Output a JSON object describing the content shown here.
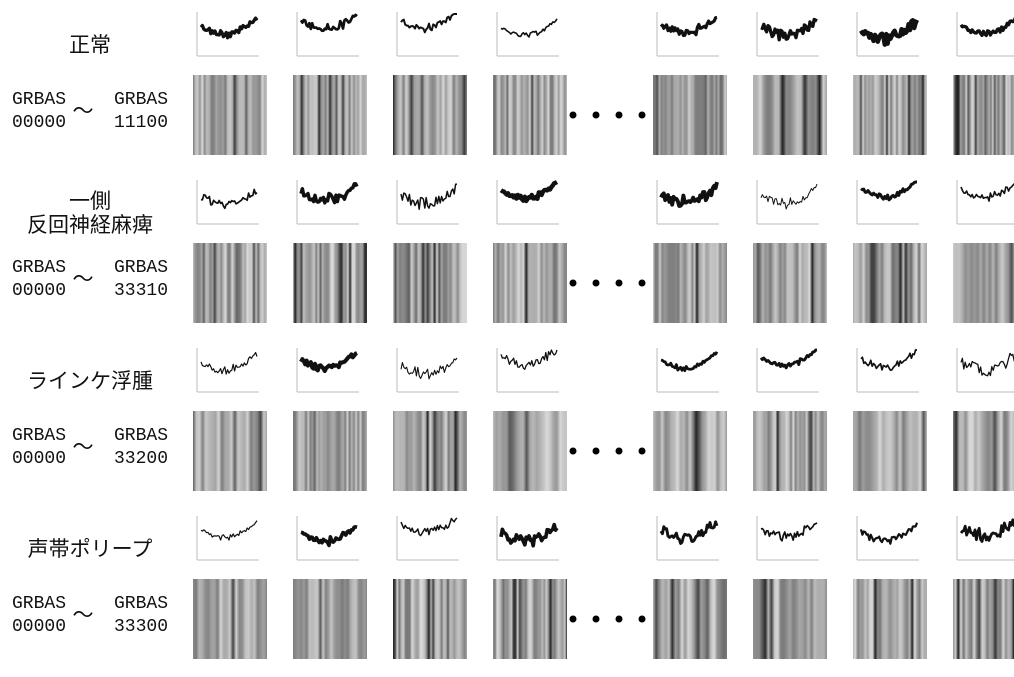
{
  "groups": [
    {
      "label": [
        "正常"
      ],
      "from_label": "GRBAS",
      "from_code": "00000",
      "separator": "～",
      "to_label": "GRBAS",
      "to_code": "11100"
    },
    {
      "label": [
        "一側",
        "反回神経麻痺"
      ],
      "from_label": "GRBAS",
      "from_code": "00000",
      "separator": "～",
      "to_label": "GRBAS",
      "to_code": "33310"
    },
    {
      "label": [
        "ラインケ浮腫"
      ],
      "from_label": "GRBAS",
      "from_code": "00000",
      "separator": "～",
      "to_label": "GRBAS",
      "to_code": "33200"
    },
    {
      "label": [
        "声帯ポリープ"
      ],
      "from_label": "GRBAS",
      "from_code": "00000",
      "separator": "～",
      "to_label": "GRBAS",
      "to_code": "33300"
    }
  ]
}
